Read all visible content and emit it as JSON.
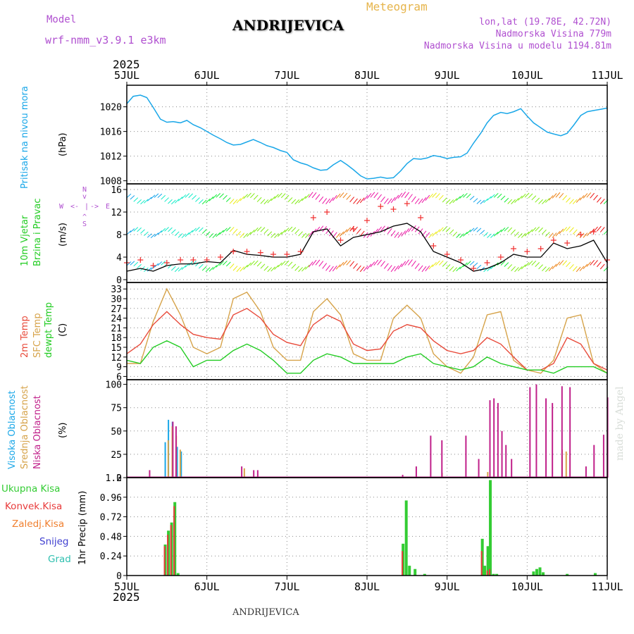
{
  "header": {
    "model_label": "Model",
    "model_name": "wrf-nmm_v3.9.1 e3km",
    "station": "ANDRIJEVICA",
    "meteogram": "Meteogram",
    "lonlat": "lon,lat (19.78E, 42.72N)",
    "altitude": "Nadmorska Visina 779m",
    "model_altitude": "Nadmorska Visina u modelu 1194.81m",
    "year_top": "2025",
    "year_bottom": "2025",
    "footer_station": "ANDRIJEVICA",
    "credit": "made by Angel"
  },
  "colors": {
    "pressure": "#1aa7e8",
    "temp2m": "#e84a3a",
    "sfc": "#d6a34a",
    "dew": "#22cc22",
    "high": "#1aa7e8",
    "mid": "#d6a34a",
    "low": "#c0208a",
    "rain": "#33cc33",
    "conv": "#e83a3a",
    "frz": "#f08030",
    "snow": "#4040d0",
    "grad": "#30c0b0",
    "label_violet": "#b050d0"
  },
  "chart_data": [
    {
      "type": "line",
      "title": "Pritisak na nivou mora",
      "ylabel": "(hPa)",
      "xlabels": [
        "5JUL",
        "6JUL",
        "7JUL",
        "8JUL",
        "9JUL",
        "10JUL",
        "11JUL"
      ],
      "ylim": [
        1007.5,
        1023.5
      ],
      "yticks": [
        1008,
        1012,
        1016,
        1020
      ],
      "series": [
        {
          "name": "pressure",
          "x": [
            0,
            0.08,
            0.17,
            0.25,
            0.33,
            0.42,
            0.5,
            0.58,
            0.67,
            0.75,
            0.83,
            0.92,
            1,
            1.08,
            1.17,
            1.25,
            1.33,
            1.42,
            1.5,
            1.58,
            1.67,
            1.75,
            1.83,
            1.92,
            2,
            2.08,
            2.17,
            2.25,
            2.33,
            2.42,
            2.5,
            2.58,
            2.67,
            2.75,
            2.83,
            2.92,
            3,
            3.08,
            3.17,
            3.25,
            3.33,
            3.42,
            3.5,
            3.58,
            3.67,
            3.75,
            3.83,
            3.92,
            4,
            4.08,
            4.17,
            4.25,
            4.33,
            4.42,
            4.5,
            4.58,
            4.67,
            4.75,
            4.83,
            4.92,
            5,
            5.08,
            5.17,
            5.25,
            5.33,
            5.42,
            5.5,
            5.58,
            5.67,
            5.75,
            5.83,
            5.92,
            6
          ],
          "values": [
            1020.5,
            1021.7,
            1021.9,
            1021.5,
            1019.9,
            1018,
            1017.5,
            1017.6,
            1017.4,
            1017.8,
            1017.1,
            1016.6,
            1016,
            1015.4,
            1014.8,
            1014.2,
            1013.8,
            1013.9,
            1014.3,
            1014.7,
            1014.2,
            1013.7,
            1013.4,
            1012.9,
            1012.6,
            1011.4,
            1010.9,
            1010.6,
            1010.1,
            1009.7,
            1009.8,
            1010.6,
            1011.3,
            1010.6,
            1009.8,
            1008.8,
            1008.3,
            1008.4,
            1008.6,
            1008.4,
            1008.5,
            1009.6,
            1010.8,
            1011.6,
            1011.5,
            1011.7,
            1012.1,
            1011.9,
            1011.6,
            1011.8,
            1011.9,
            1012.5,
            1014.1,
            1015.7,
            1017.4,
            1018.6,
            1019.1,
            1018.9,
            1019.2,
            1019.7,
            1018.5,
            1017.4,
            1016.6,
            1015.9,
            1015.6,
            1015.3,
            1015.7,
            1017,
            1018.6,
            1019.2,
            1019.4,
            1019.6,
            1019.8
          ]
        }
      ]
    },
    {
      "type": "line",
      "title": "10m Vjetar Brzina i Pravac",
      "ylabel": "(m/s)",
      "ylim": [
        -0.5,
        17
      ],
      "yticks": [
        0,
        4,
        8,
        12,
        16
      ],
      "direction_legend": [
        "W",
        "<-",
        "|",
        "->",
        "E",
        "S",
        "^",
        "N",
        "v"
      ],
      "series": [
        {
          "name": "wind speed",
          "x": [
            0,
            0.17,
            0.33,
            0.5,
            0.67,
            0.83,
            1,
            1.17,
            1.33,
            1.5,
            1.67,
            1.83,
            2,
            2.17,
            2.33,
            2.5,
            2.67,
            2.83,
            3,
            3.17,
            3.33,
            3.5,
            3.67,
            3.83,
            4,
            4.17,
            4.33,
            4.5,
            4.67,
            4.83,
            5,
            5.17,
            5.33,
            5.5,
            5.67,
            5.83,
            6
          ],
          "values": [
            1.5,
            2,
            1.5,
            2.5,
            2.8,
            2.8,
            3.2,
            3,
            5.2,
            4.5,
            4.3,
            4,
            4,
            4.5,
            8.5,
            9,
            6,
            7.5,
            8,
            8.5,
            9.5,
            10,
            8.5,
            5,
            4,
            3,
            1.5,
            2,
            3,
            4.5,
            4,
            4,
            6.5,
            5.5,
            6,
            7,
            3
          ]
        },
        {
          "name": "gust",
          "x": [
            0,
            0.17,
            0.33,
            0.5,
            0.67,
            0.83,
            1,
            1.17,
            1.33,
            1.5,
            1.67,
            1.83,
            2,
            2.17,
            2.33,
            2.5,
            2.67,
            2.83,
            3,
            3.17,
            3.33,
            3.5,
            3.67,
            3.83,
            4,
            4.17,
            4.33,
            4.5,
            4.67,
            4.83,
            5,
            5.17,
            5.33,
            5.5,
            5.67,
            5.83,
            6
          ],
          "values": [
            3,
            3.5,
            2.5,
            3,
            3.5,
            3.5,
            3.5,
            4,
            5,
            5,
            4.8,
            4.5,
            4.5,
            5,
            11,
            12,
            7,
            9,
            10.5,
            13,
            12.5,
            13.5,
            11,
            6,
            4.5,
            3.5,
            2,
            3,
            4,
            5.5,
            5,
            5.5,
            7,
            6.5,
            8,
            8.5,
            3.5
          ]
        }
      ]
    },
    {
      "type": "line",
      "title": "2m Temp / SFC Temp / dewpt Temp",
      "ylabel": "(C)",
      "ylim": [
        5,
        35
      ],
      "yticks": [
        6,
        9,
        12,
        15,
        18,
        21,
        24,
        27,
        30,
        33
      ],
      "series": [
        {
          "name": "2m Temp",
          "x": [
            0,
            0.17,
            0.33,
            0.5,
            0.67,
            0.83,
            1,
            1.17,
            1.33,
            1.5,
            1.67,
            1.83,
            2,
            2.17,
            2.33,
            2.5,
            2.67,
            2.83,
            3,
            3.17,
            3.33,
            3.5,
            3.67,
            3.83,
            4,
            4.17,
            4.33,
            4.5,
            4.67,
            4.83,
            5,
            5.17,
            5.33,
            5.5,
            5.67,
            5.83,
            6
          ],
          "values": [
            13,
            16,
            22,
            26,
            22,
            19,
            18,
            17.5,
            25,
            27,
            24,
            19,
            16.5,
            15.5,
            22,
            25,
            23,
            16,
            14,
            14.5,
            20,
            22,
            21,
            17,
            14,
            13,
            14,
            18,
            16,
            12,
            8,
            8,
            10,
            18,
            16,
            10,
            8
          ]
        },
        {
          "name": "SFC Temp",
          "x": [
            0,
            0.17,
            0.33,
            0.5,
            0.67,
            0.83,
            1,
            1.17,
            1.33,
            1.5,
            1.67,
            1.83,
            2,
            2.17,
            2.33,
            2.5,
            2.67,
            2.83,
            3,
            3.17,
            3.33,
            3.5,
            3.67,
            3.83,
            4,
            4.17,
            4.33,
            4.5,
            4.67,
            4.83,
            5,
            5.17,
            5.33,
            5.5,
            5.67,
            5.83,
            6
          ],
          "values": [
            10,
            10,
            23,
            33,
            25,
            15,
            13,
            15,
            30,
            32,
            26,
            15,
            11,
            11,
            26,
            30,
            25,
            13,
            11,
            11,
            24,
            28,
            24,
            13,
            9,
            7,
            12,
            25,
            26,
            11,
            8,
            7,
            11,
            24,
            25,
            10,
            7
          ]
        },
        {
          "name": "dewpt Temp",
          "x": [
            0,
            0.17,
            0.33,
            0.5,
            0.67,
            0.83,
            1,
            1.17,
            1.33,
            1.5,
            1.67,
            1.83,
            2,
            2.17,
            2.33,
            2.5,
            2.67,
            2.83,
            3,
            3.17,
            3.33,
            3.5,
            3.67,
            3.83,
            4,
            4.17,
            4.33,
            4.5,
            4.67,
            4.83,
            5,
            5.17,
            5.33,
            5.5,
            5.67,
            5.83,
            6
          ],
          "values": [
            11,
            10,
            15,
            17,
            15,
            9,
            11,
            11,
            14,
            16,
            14,
            11,
            7,
            7,
            11,
            13,
            12,
            10,
            10,
            10,
            10,
            12,
            13,
            10,
            9,
            8,
            9,
            12,
            10,
            9,
            8,
            8,
            7,
            9,
            9,
            9,
            7
          ]
        }
      ]
    },
    {
      "type": "bar",
      "title": "Visoka / Srednja / Niska Oblacnost",
      "ylabel": "(%)",
      "ylim": [
        0,
        105
      ],
      "yticks": [
        0,
        25,
        50,
        75,
        100
      ],
      "series": [
        {
          "name": "Visoka Oblacnost",
          "x": [
            0.48,
            0.52,
            0.57,
            0.63,
            0.68
          ],
          "values": [
            38,
            62,
            60,
            33,
            28
          ]
        },
        {
          "name": "Srednja Oblacnost",
          "x": [
            0.5,
            0.55,
            0.6,
            0.65,
            1.45,
            3.92,
            4.49,
            5.42,
            5.47
          ],
          "values": [
            40,
            55,
            45,
            30,
            10,
            5,
            6,
            30,
            28
          ]
        },
        {
          "name": "Niska Oblacnost",
          "x": [
            0.25,
            0.54,
            0.58,
            1.4,
            1.55,
            1.6,
            3.41,
            3.58,
            3.76,
            3.9,
            4.2,
            4.36,
            4.5,
            4.55,
            4.6,
            4.65,
            4.7,
            4.77,
            5,
            5.08,
            5.2,
            5.28,
            5.4,
            5.5,
            5.7,
            5.8,
            5.92,
            5.97
          ],
          "values": [
            8,
            60,
            55,
            12,
            8,
            8,
            3,
            12,
            45,
            40,
            45,
            20,
            83,
            85,
            80,
            50,
            35,
            20,
            97,
            100,
            85,
            80,
            98,
            97,
            12,
            35,
            46,
            86
          ]
        }
      ]
    },
    {
      "type": "bar",
      "title": "1hr Precip",
      "ylabel": "1hr Precip (mm)",
      "ylim": [
        0,
        1.2
      ],
      "yticks": [
        0,
        0.24,
        0.48,
        0.72,
        0.96,
        1.2
      ],
      "legend": [
        "Ukupna Kisa",
        "Konvek.Kisa",
        "Zaledj.Kisa",
        "Snijeg",
        "Grad"
      ],
      "series": [
        {
          "name": "Ukupna Kisa",
          "x": [
            0.48,
            0.52,
            0.56,
            0.6,
            0.64,
            3.45,
            3.49,
            3.53,
            3.6,
            3.72,
            4.44,
            4.47,
            4.51,
            4.54,
            4.58,
            4.62,
            5.08,
            5.12,
            5.16,
            5.2,
            5.5,
            5.85
          ],
          "values": [
            0.38,
            0.55,
            0.65,
            0.9,
            0.03,
            0.39,
            0.92,
            0.12,
            0.08,
            0.02,
            0.45,
            0.12,
            0.36,
            1.17,
            0.02,
            0.02,
            0.05,
            0.08,
            0.1,
            0.04,
            0.02,
            0.03
          ]
        },
        {
          "name": "Konvek.Kisa",
          "x": [
            0.48,
            0.52,
            0.56,
            0.6,
            3.45,
            4.44,
            4.51,
            4.54
          ],
          "values": [
            0.36,
            0.5,
            0.62,
            0.85,
            0.3,
            0.3,
            0.06,
            0.08
          ]
        }
      ]
    }
  ]
}
